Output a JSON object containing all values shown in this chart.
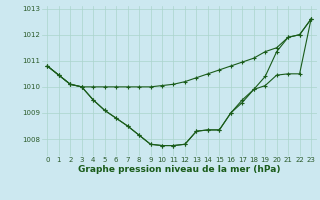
{
  "bg_color": "#cce8f0",
  "grid_color": "#aad4cc",
  "line_color": "#1a5c1a",
  "marker": "+",
  "markersize": 3.5,
  "linewidth": 0.8,
  "xlabel": "Graphe pression niveau de la mer (hPa)",
  "xlabel_fontsize": 6.5,
  "xlabel_color": "#1a5c1a",
  "xlabel_bold": true,
  "tick_fontsize": 5,
  "tick_color": "#2a5a2a",
  "hours": [
    0,
    1,
    2,
    3,
    4,
    5,
    6,
    7,
    8,
    9,
    10,
    11,
    12,
    13,
    14,
    15,
    16,
    17,
    18,
    19,
    20,
    21,
    22,
    23
  ],
  "series1": [
    1010.8,
    1010.45,
    1010.1,
    1010.0,
    1010.0,
    1010.0,
    1010.0,
    1010.0,
    1010.0,
    1010.0,
    1010.05,
    1010.1,
    1010.2,
    1010.35,
    1010.5,
    1010.65,
    1010.8,
    1010.95,
    1011.1,
    1011.35,
    1011.5,
    1011.9,
    1012.0,
    1012.6
  ],
  "series2": [
    1010.8,
    1010.45,
    1010.1,
    1010.0,
    1009.5,
    1009.1,
    1008.8,
    1008.5,
    1008.15,
    1007.8,
    1007.75,
    1007.75,
    1007.8,
    1008.3,
    1008.35,
    1008.35,
    1009.0,
    1009.4,
    1009.9,
    1010.05,
    1010.45,
    1010.5,
    1010.5,
    1012.6
  ],
  "series3": [
    1010.8,
    1010.45,
    1010.1,
    1010.0,
    1009.5,
    1009.1,
    1008.8,
    1008.5,
    1008.15,
    1007.8,
    1007.75,
    1007.75,
    1007.8,
    1008.3,
    1008.35,
    1008.35,
    1009.0,
    1009.5,
    1009.9,
    1010.4,
    1011.35,
    1011.9,
    1012.0,
    1012.6
  ],
  "ylim": [
    1007.35,
    1013.1
  ],
  "yticks": [
    1008,
    1009,
    1010,
    1011,
    1012,
    1013
  ],
  "xticks": [
    0,
    1,
    2,
    3,
    4,
    5,
    6,
    7,
    8,
    9,
    10,
    11,
    12,
    13,
    14,
    15,
    16,
    17,
    18,
    19,
    20,
    21,
    22,
    23
  ]
}
